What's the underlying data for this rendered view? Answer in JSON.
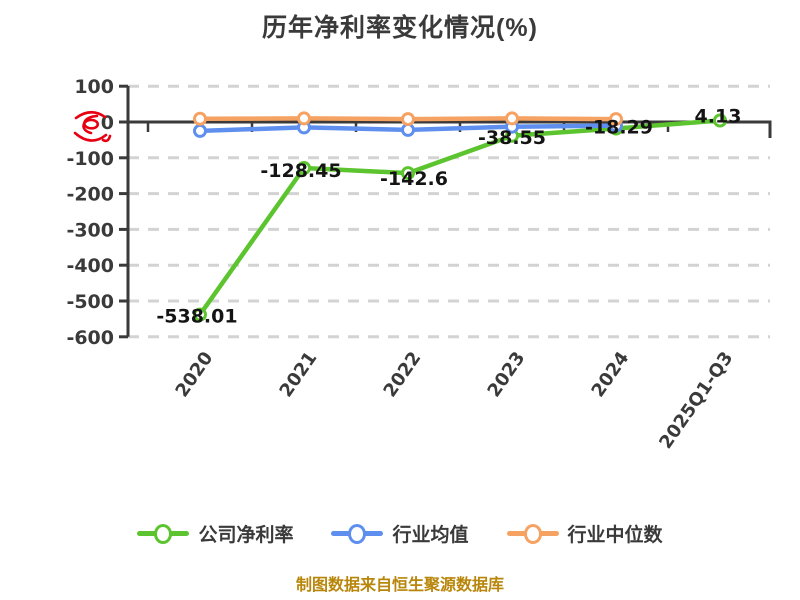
{
  "title": "历年净利率变化情况(%)",
  "source_note": "制图数据来自恒生聚源数据库",
  "colors": {
    "background": "#ffffff",
    "axis": "#3a3a3a",
    "grid": "#d3d3d3",
    "data_label": "#141414",
    "watermark_red": "#e60012",
    "source_note": "#b8860b"
  },
  "chart_data": {
    "type": "line",
    "title": "历年净利率变化情况(%)",
    "categories": [
      "2020",
      "2021",
      "2022",
      "2023",
      "2024",
      "2025Q1-Q3"
    ],
    "series": [
      {
        "id": "company-net-margin",
        "name": "公司净利率",
        "color": "#5cc42e",
        "values": [
          -538.01,
          -128.45,
          -142.6,
          -38.55,
          -18.29,
          4.13
        ],
        "point_labels": [
          "-538.01",
          "-128.45",
          "-142.6",
          "-38.55",
          "-18.29",
          "4.13"
        ]
      },
      {
        "id": "industry-average",
        "name": "行业均值",
        "color": "#5e8fee",
        "values": [
          -25,
          -15,
          -22,
          -13,
          -10
        ],
        "values_estimated": true
      },
      {
        "id": "industry-median",
        "name": "行业中位数",
        "color": "#f5a263",
        "values": [
          9,
          10,
          8,
          10,
          8
        ],
        "values_estimated": true
      }
    ],
    "ylim": [
      -600,
      100
    ],
    "yticks": [
      100,
      0,
      -100,
      -200,
      -300,
      -400,
      -500,
      -600
    ],
    "grid": "horizontal-dashed",
    "marker": "white-filled-circle",
    "legend_position": "bottom"
  }
}
